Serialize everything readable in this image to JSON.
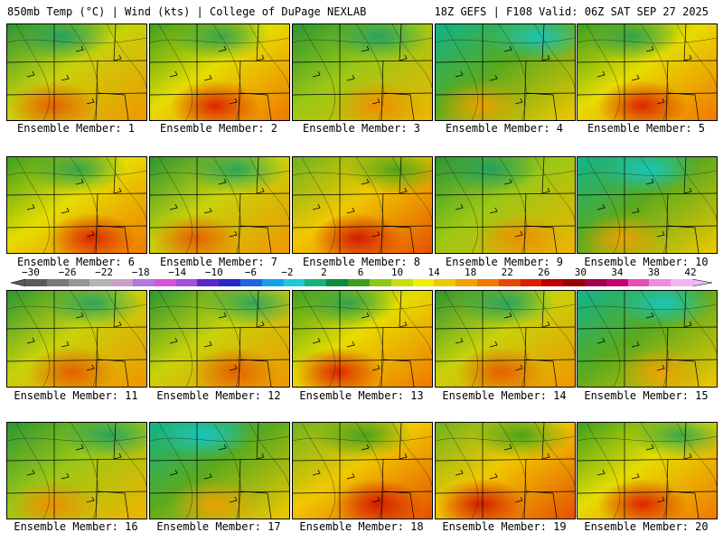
{
  "header": {
    "left_title": "850mb Temp (°C) | Wind (kts) | College of DuPage NEXLAB",
    "right_title": "18Z GEFS | F108 Valid: 06Z SAT SEP 27 2025"
  },
  "colorbar": {
    "ticks": [
      "−30",
      "−26",
      "−22",
      "−18",
      "−14",
      "−10",
      "−6",
      "−2",
      "2",
      "6",
      "10",
      "14",
      "18",
      "22",
      "26",
      "30",
      "34",
      "38",
      "42"
    ],
    "colors": [
      "#5a5a5a",
      "#787878",
      "#969696",
      "#b4b4b4",
      "#c8a0c8",
      "#b478dc",
      "#dc50dc",
      "#a050dc",
      "#5a28c8",
      "#2828c8",
      "#1e64e6",
      "#14a0f0",
      "#1ec8dc",
      "#14b478",
      "#0a8c3c",
      "#3ca01e",
      "#8cc814",
      "#c8dc0a",
      "#f0f000",
      "#f0c800",
      "#f0a000",
      "#f07800",
      "#e64600",
      "#dc1e00",
      "#be0000",
      "#960000",
      "#a00050",
      "#c8006e",
      "#e650b4",
      "#f08cdc",
      "#f0b4f0"
    ]
  },
  "panels": [
    {
      "label": "Ensemble Member: 1",
      "variant": "moderate"
    },
    {
      "label": "Ensemble Member: 2",
      "variant": "warm"
    },
    {
      "label": "Ensemble Member: 3",
      "variant": "mild"
    },
    {
      "label": "Ensemble Member: 4",
      "variant": "cool"
    },
    {
      "label": "Ensemble Member: 5",
      "variant": "warm"
    },
    {
      "label": "Ensemble Member: 6",
      "variant": "warm"
    },
    {
      "label": "Ensemble Member: 7",
      "variant": "moderate"
    },
    {
      "label": "Ensemble Member: 8",
      "variant": "hot"
    },
    {
      "label": "Ensemble Member: 9",
      "variant": "mild"
    },
    {
      "label": "Ensemble Member: 10",
      "variant": "cool"
    },
    {
      "label": "Ensemble Member: 11",
      "variant": "moderate"
    },
    {
      "label": "Ensemble Member: 12",
      "variant": "moderate"
    },
    {
      "label": "Ensemble Member: 13",
      "variant": "warm"
    },
    {
      "label": "Ensemble Member: 14",
      "variant": "moderate"
    },
    {
      "label": "Ensemble Member: 15",
      "variant": "cool"
    },
    {
      "label": "Ensemble Member: 16",
      "variant": "mild"
    },
    {
      "label": "Ensemble Member: 17",
      "variant": "cool"
    },
    {
      "label": "Ensemble Member: 18",
      "variant": "hot"
    },
    {
      "label": "Ensemble Member: 19",
      "variant": "hot"
    },
    {
      "label": "Ensemble Member: 20",
      "variant": "warm"
    }
  ]
}
